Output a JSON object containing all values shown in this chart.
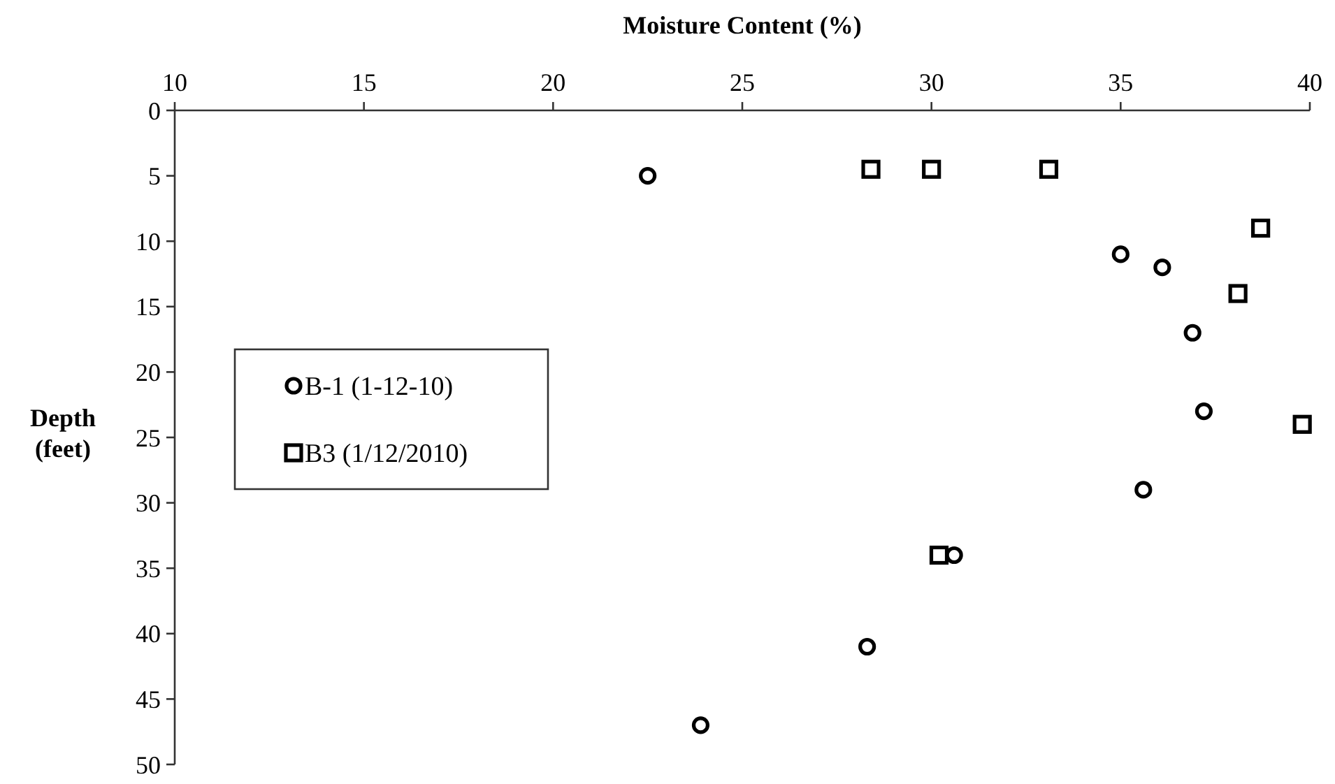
{
  "chart_data": {
    "type": "scatter",
    "xlabel": "Moisture Content (%)",
    "ylabel": "Depth (feet)",
    "xlim": [
      10,
      40
    ],
    "xticks": [
      10,
      15,
      20,
      25,
      30,
      35,
      40
    ],
    "ylim": [
      50,
      0
    ],
    "yticks": [
      0,
      5,
      10,
      15,
      20,
      25,
      30,
      35,
      40,
      45,
      50
    ],
    "grid": false,
    "legend": "left",
    "series": [
      {
        "name": "B-1 (1-12-10)",
        "color": "#000000",
        "marker": "circle",
        "x": [
          22.5,
          35.0,
          36.1,
          36.9,
          37.2,
          35.6,
          30.6,
          28.3,
          23.9
        ],
        "values": [
          5,
          11,
          12,
          17,
          23,
          29,
          34,
          41,
          47
        ]
      },
      {
        "name": "B3 (1/12/2010)",
        "color": "#000000",
        "marker": "square",
        "x": [
          28.4,
          30.0,
          33.1,
          38.7,
          38.1,
          39.8,
          30.2
        ],
        "values": [
          4.5,
          4.5,
          4.5,
          9,
          14,
          24,
          34
        ]
      }
    ]
  }
}
